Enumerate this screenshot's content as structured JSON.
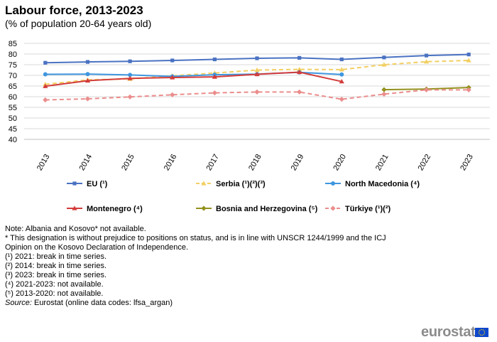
{
  "title": "Labour force, 2013-2023",
  "subtitle": "(% of population 20-64 years old)",
  "chart_data": {
    "type": "line",
    "categories": [
      "2013",
      "2014",
      "2015",
      "2016",
      "2017",
      "2018",
      "2019",
      "2020",
      "2021",
      "2022",
      "2023"
    ],
    "ylim": [
      40,
      85
    ],
    "yticks": [
      40,
      45,
      50,
      55,
      60,
      65,
      70,
      75,
      80,
      85
    ],
    "grid": true,
    "legend_position": "bottom",
    "series": [
      {
        "name": "EU (¹)",
        "color": "#4a72c2",
        "dash": "solid",
        "marker": "square",
        "values": [
          75.9,
          76.3,
          76.6,
          77.0,
          77.5,
          78.0,
          78.2,
          77.5,
          78.4,
          79.3,
          79.8
        ]
      },
      {
        "name": "Serbia (¹)(²)(³)",
        "color": "#f2cf63",
        "dash": "dashed",
        "marker": "triangle",
        "values": [
          65.8,
          67.9,
          68.3,
          69.8,
          71.1,
          72.5,
          72.8,
          72.7,
          75.0,
          76.4,
          77.0
        ]
      },
      {
        "name": "North Macedonia (⁴)",
        "color": "#3f96df",
        "dash": "solid",
        "marker": "circle",
        "values": [
          70.5,
          70.6,
          70.2,
          69.5,
          70.3,
          70.6,
          71.4,
          70.4,
          null,
          null,
          null
        ]
      },
      {
        "name": "Montenegro (⁴)",
        "color": "#d33c3a",
        "dash": "solid",
        "marker": "triangle",
        "values": [
          64.9,
          67.5,
          68.6,
          69.0,
          69.3,
          70.5,
          71.5,
          67.1,
          null,
          null,
          null
        ]
      },
      {
        "name": "Bosnia and Herzegovina (⁵)",
        "color": "#94911e",
        "dash": "solid",
        "marker": "diamond",
        "values": [
          null,
          null,
          null,
          null,
          null,
          null,
          null,
          null,
          63.3,
          63.6,
          64.3
        ]
      },
      {
        "name": "Türkiye (¹)(²)",
        "color": "#ea8d8c",
        "dash": "dashed",
        "marker": "diamond",
        "values": [
          58.5,
          59.0,
          59.9,
          60.9,
          61.8,
          62.2,
          62.2,
          58.8,
          61.2,
          63.2,
          63.2
        ]
      }
    ]
  },
  "notes": [
    "Note: Albania and Kosovo* not available.",
    "* This designation is without prejudice to positions on status, and is in line with UNSCR 1244/1999 and the ICJ",
    "Opinion on the Kosovo Declaration of Independence.",
    "(¹) 2021: break in time series.",
    "(²) 2014: break in time series.",
    "(³) 2023: break in time series.",
    "(⁴) 2021-2023: not available.",
    "(⁵) 2013-2020: not available."
  ],
  "source": {
    "label": "Source:",
    "text": " Eurostat (online data codes: lfsa_argan)"
  },
  "logo_text": "eurostat",
  "colors": {
    "logo_flag": "#0e47cb",
    "grid": "#d9d9d9"
  }
}
